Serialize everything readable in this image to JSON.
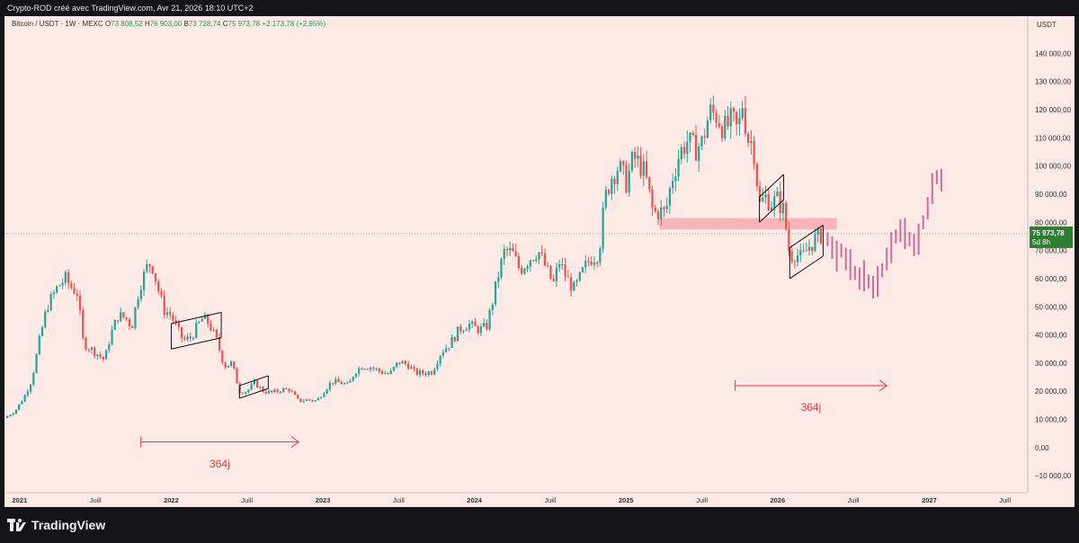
{
  "header": {
    "author_line": "Crypto-ROD créé avec TradingView.com, Avr 21, 2026 18:10 UTC+2"
  },
  "legend": {
    "symbol": "Bitcoin / USDT · 1W · MEXC",
    "open_label": "O",
    "open": "73 808,52",
    "high_label": "H",
    "high": "76 903,00",
    "low_label": "B",
    "low": "73 728,74",
    "close_label": "C",
    "close": "75 973,78",
    "change": "+2 173,78 (+2,95%)"
  },
  "footer": {
    "brand": "TradingView"
  },
  "colors": {
    "up": "#26a69a",
    "down": "#ef5350",
    "projection": "#d06b9a",
    "zone": "#f7a3aa",
    "background": "#fdeae6",
    "annotation": "#e53935"
  },
  "chart_data": {
    "type": "candlestick",
    "x_unit": "year",
    "xlim": [
      2020.9,
      2027.65
    ],
    "ylim": [
      -16000,
      150000
    ],
    "currency_label": "USDT",
    "y_ticks": [
      {
        "v": 140000,
        "t": "140 000,00"
      },
      {
        "v": 130000,
        "t": "130 000,00"
      },
      {
        "v": 120000,
        "t": "120 000,00"
      },
      {
        "v": 110000,
        "t": "110 000,00"
      },
      {
        "v": 100000,
        "t": "100 000,00"
      },
      {
        "v": 90000,
        "t": "90 000,00"
      },
      {
        "v": 80000,
        "t": "80 000,00"
      },
      {
        "v": 70000,
        "t": "70 000,00"
      },
      {
        "v": 60000,
        "t": "60 000,00"
      },
      {
        "v": 50000,
        "t": "50 000,00"
      },
      {
        "v": 40000,
        "t": "40 000,00"
      },
      {
        "v": 30000,
        "t": "30 000,00"
      },
      {
        "v": 20000,
        "t": "20 000,00"
      },
      {
        "v": 10000,
        "t": "10 000,00"
      },
      {
        "v": 0,
        "t": "0,00"
      },
      {
        "v": -10000,
        "t": "−10 000,00"
      }
    ],
    "x_ticks": [
      {
        "x": 2021.0,
        "t": "2021",
        "major": true
      },
      {
        "x": 2021.5,
        "t": "Juill",
        "major": false
      },
      {
        "x": 2022.0,
        "t": "2022",
        "major": true
      },
      {
        "x": 2022.5,
        "t": "Juill",
        "major": false
      },
      {
        "x": 2023.0,
        "t": "2023",
        "major": true
      },
      {
        "x": 2023.5,
        "t": "Juill",
        "major": false
      },
      {
        "x": 2024.0,
        "t": "2024",
        "major": true
      },
      {
        "x": 2024.5,
        "t": "Juill",
        "major": false
      },
      {
        "x": 2025.0,
        "t": "2025",
        "major": true
      },
      {
        "x": 2025.5,
        "t": "Juill",
        "major": false
      },
      {
        "x": 2026.0,
        "t": "2026",
        "major": true
      },
      {
        "x": 2026.5,
        "t": "Juill",
        "major": false
      },
      {
        "x": 2027.0,
        "t": "2027",
        "major": true
      },
      {
        "x": 2027.5,
        "t": "Juill",
        "major": false
      }
    ],
    "price_path": [
      [
        2020.9,
        10500
      ],
      [
        2020.97,
        13000
      ],
      [
        2021.03,
        18000
      ],
      [
        2021.08,
        24000
      ],
      [
        2021.13,
        38000
      ],
      [
        2021.18,
        50000
      ],
      [
        2021.25,
        57000
      ],
      [
        2021.3,
        60000
      ],
      [
        2021.34,
        57000
      ],
      [
        2021.38,
        55000
      ],
      [
        2021.42,
        37000
      ],
      [
        2021.47,
        35000
      ],
      [
        2021.52,
        33000
      ],
      [
        2021.56,
        31000
      ],
      [
        2021.6,
        40000
      ],
      [
        2021.65,
        47000
      ],
      [
        2021.7,
        46000
      ],
      [
        2021.74,
        43000
      ],
      [
        2021.79,
        57000
      ],
      [
        2021.84,
        64000
      ],
      [
        2021.87,
        66000
      ],
      [
        2021.91,
        57000
      ],
      [
        2021.95,
        49000
      ],
      [
        2022.0,
        47000
      ],
      [
        2022.04,
        42000
      ],
      [
        2022.08,
        38000
      ],
      [
        2022.13,
        39000
      ],
      [
        2022.17,
        43000
      ],
      [
        2022.21,
        46000
      ],
      [
        2022.25,
        44000
      ],
      [
        2022.3,
        38000
      ],
      [
        2022.35,
        29000
      ],
      [
        2022.4,
        30000
      ],
      [
        2022.45,
        20000
      ],
      [
        2022.5,
        20000
      ],
      [
        2022.55,
        23000
      ],
      [
        2022.61,
        20000
      ],
      [
        2022.67,
        19500
      ],
      [
        2022.72,
        20500
      ],
      [
        2022.78,
        20700
      ],
      [
        2022.84,
        16500
      ],
      [
        2022.9,
        17000
      ],
      [
        2022.96,
        16600
      ],
      [
        2023.02,
        21000
      ],
      [
        2023.06,
        23500
      ],
      [
        2023.12,
        23000
      ],
      [
        2023.17,
        22000
      ],
      [
        2023.21,
        27000
      ],
      [
        2023.26,
        29000
      ],
      [
        2023.32,
        28500
      ],
      [
        2023.38,
        27000
      ],
      [
        2023.44,
        26000
      ],
      [
        2023.5,
        30500
      ],
      [
        2023.56,
        29500
      ],
      [
        2023.61,
        26500
      ],
      [
        2023.67,
        26500
      ],
      [
        2023.72,
        27000
      ],
      [
        2023.78,
        34000
      ],
      [
        2023.84,
        37000
      ],
      [
        2023.9,
        42000
      ],
      [
        2023.96,
        44000
      ],
      [
        2024.0,
        42500
      ],
      [
        2024.04,
        42000
      ],
      [
        2024.08,
        43000
      ],
      [
        2024.12,
        52000
      ],
      [
        2024.16,
        62000
      ],
      [
        2024.2,
        70000
      ],
      [
        2024.25,
        69000
      ],
      [
        2024.3,
        63000
      ],
      [
        2024.36,
        67000
      ],
      [
        2024.42,
        70000
      ],
      [
        2024.47,
        64000
      ],
      [
        2024.52,
        58000
      ],
      [
        2024.56,
        66000
      ],
      [
        2024.61,
        60000
      ],
      [
        2024.66,
        56000
      ],
      [
        2024.72,
        63000
      ],
      [
        2024.76,
        67000
      ],
      [
        2024.82,
        69000
      ],
      [
        2024.86,
        88000
      ],
      [
        2024.9,
        96000
      ],
      [
        2024.95,
        100000
      ],
      [
        2025.0,
        94000
      ],
      [
        2025.05,
        103000
      ],
      [
        2025.1,
        100000
      ],
      [
        2025.13,
        96000
      ],
      [
        2025.18,
        83000
      ],
      [
        2025.22,
        84000
      ],
      [
        2025.26,
        83000
      ],
      [
        2025.3,
        95000
      ],
      [
        2025.35,
        104000
      ],
      [
        2025.4,
        109000
      ],
      [
        2025.45,
        106000
      ],
      [
        2025.5,
        108000
      ],
      [
        2025.55,
        119000
      ],
      [
        2025.6,
        118000
      ],
      [
        2025.65,
        113000
      ],
      [
        2025.7,
        116000
      ],
      [
        2025.74,
        112000
      ],
      [
        2025.77,
        123000
      ],
      [
        2025.8,
        110000
      ],
      [
        2025.84,
        108000
      ],
      [
        2025.88,
        86000
      ],
      [
        2025.92,
        89000
      ],
      [
        2025.96,
        87000
      ],
      [
        2026.0,
        88000
      ],
      [
        2026.04,
        84000
      ],
      [
        2026.08,
        68000
      ],
      [
        2026.12,
        69000
      ],
      [
        2026.16,
        67000
      ],
      [
        2026.2,
        71000
      ],
      [
        2026.25,
        74000
      ],
      [
        2026.3,
        76000
      ]
    ],
    "projection": [
      [
        2026.33,
        74000
      ],
      [
        2026.36,
        71000
      ],
      [
        2026.39,
        68000
      ],
      [
        2026.42,
        70000
      ],
      [
        2026.45,
        67000
      ],
      [
        2026.48,
        65000
      ],
      [
        2026.51,
        62000
      ],
      [
        2026.54,
        60000
      ],
      [
        2026.57,
        61000
      ],
      [
        2026.6,
        59000
      ],
      [
        2026.63,
        57000
      ],
      [
        2026.66,
        59000
      ],
      [
        2026.69,
        63000
      ],
      [
        2026.72,
        67000
      ],
      [
        2026.75,
        71000
      ],
      [
        2026.78,
        75000
      ],
      [
        2026.81,
        77000
      ],
      [
        2026.84,
        76000
      ],
      [
        2026.87,
        74000
      ],
      [
        2026.9,
        72000
      ],
      [
        2026.93,
        74000
      ],
      [
        2026.96,
        80000
      ],
      [
        2026.99,
        85000
      ],
      [
        2027.02,
        92000
      ],
      [
        2027.05,
        96000
      ],
      [
        2027.08,
        95000
      ]
    ],
    "last_price": {
      "value": 75973.78,
      "label": "75 973,78",
      "countdown": "5d 8h"
    },
    "resistance_zone": {
      "x_from": 2025.22,
      "x_to": 2026.39,
      "y_from": 77500,
      "y_to": 81500
    },
    "channels": [
      {
        "x1": 2022.0,
        "x2": 2022.33,
        "top1": 44000,
        "top2": 48000,
        "bot1": 35000,
        "bot2": 39000
      },
      {
        "x1": 2022.45,
        "x2": 2022.64,
        "top1": 22000,
        "top2": 25500,
        "bot1": 17500,
        "bot2": 21000
      },
      {
        "x1": 2025.88,
        "x2": 2026.04,
        "top1": 89000,
        "top2": 97000,
        "bot1": 80000,
        "bot2": 88000
      },
      {
        "x1": 2026.08,
        "x2": 2026.3,
        "top1": 71000,
        "top2": 79000,
        "bot1": 60000,
        "bot2": 68000
      }
    ],
    "intervals": [
      {
        "x_from": 2021.8,
        "x_to": 2022.84,
        "y": 2000,
        "label": "364j",
        "label_y": -7000
      },
      {
        "x_from": 2025.72,
        "x_to": 2026.72,
        "y": 22000,
        "label": "364j",
        "label_y": 13000
      }
    ]
  }
}
